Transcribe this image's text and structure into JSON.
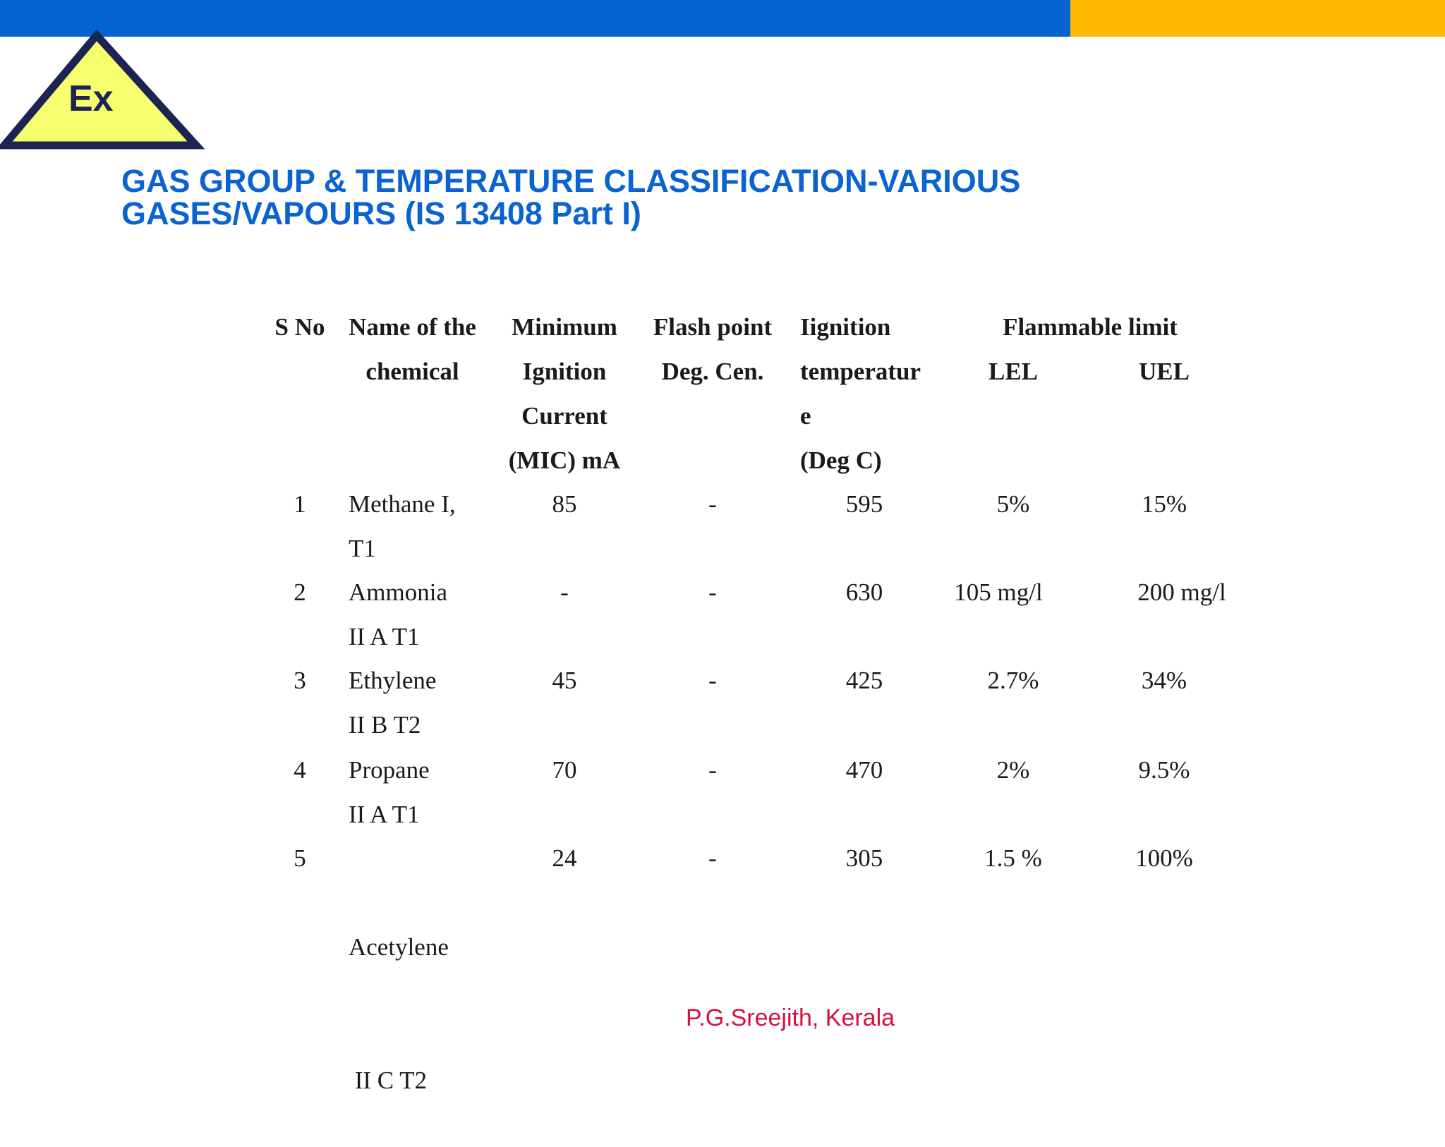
{
  "colors": {
    "top_bar_blue": "#0364d2",
    "top_bar_gold": "#ffba00",
    "logo_fill": "#f8ff6e",
    "logo_border": "#1c2454",
    "title": "#0b63d0",
    "footer": "#d6103d"
  },
  "logo": {
    "text": "Ex",
    "icon": "explosion-proof-triangle-icon"
  },
  "title": {
    "line1": "GAS GROUP & TEMPERATURE CLASSIFICATION-VARIOUS",
    "line2": "GASES/VAPOURS (IS 13408 Part I)"
  },
  "table": {
    "headers": {
      "sno": "S No",
      "name": [
        "Name of the",
        "chemical"
      ],
      "mic": [
        "Minimum",
        "Ignition",
        "Current",
        "(MIC) mA"
      ],
      "flash": [
        "Flash point",
        "Deg. Cen."
      ],
      "ign": [
        "Iignition",
        "temperatur",
        "e",
        "(Deg C)"
      ],
      "flam": "Flammable limit",
      "lel": "LEL",
      "uel": "UEL"
    },
    "rows": [
      {
        "sno": "1",
        "name": [
          "Methane I,",
          "T1"
        ],
        "mic": "85",
        "flash": "-",
        "ign": "595",
        "lel": "5%",
        "uel": "15%"
      },
      {
        "sno": "2",
        "name": [
          "Ammonia",
          "II A T1"
        ],
        "mic": "-",
        "flash": "-",
        "ign": "630",
        "lel": "105 mg/l",
        "uel": "200 mg/l"
      },
      {
        "sno": "3",
        "name": [
          "Ethylene",
          "II B T2"
        ],
        "mic": "45",
        "flash": "-",
        "ign": "425",
        "lel": "2.7%",
        "uel": "34%"
      },
      {
        "sno": "4",
        "name": [
          "Propane",
          "II A T1"
        ],
        "mic": "70",
        "flash": "-",
        "ign": "470",
        "lel": "2%",
        "uel": "9.5%"
      },
      {
        "sno": "5",
        "name": [
          "Acetylene",
          " II C T2"
        ],
        "mic": "24",
        "flash": "-",
        "ign": "305",
        "lel": "1.5 %",
        "uel": "100%"
      }
    ]
  },
  "footer": "P.G.Sreejith, Kerala"
}
